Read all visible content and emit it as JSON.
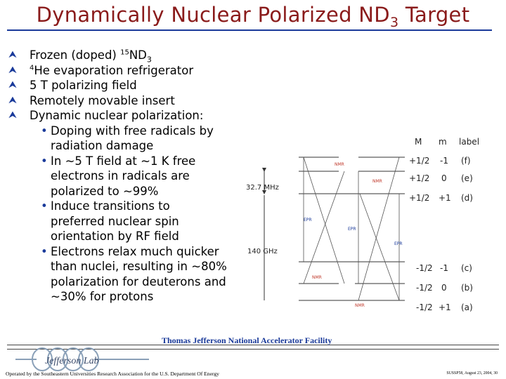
{
  "title": {
    "main": "Dynamically Nuclear Polarized ND",
    "sub": "3",
    "suffix": " Target"
  },
  "bullets": [
    {
      "sup": "15",
      "text": "ND",
      "sub": "3",
      "pre": "Frozen (doped) "
    },
    {
      "sup": "4",
      "text": "He evaporation refrigerator"
    },
    {
      "text": "5 T polarizing field"
    },
    {
      "text": "Remotely movable insert"
    },
    {
      "text": "Dynamic nuclear polarization:"
    }
  ],
  "sub_bullets": [
    [
      "Doping with free radicals by",
      "radiation damage"
    ],
    [
      "In ~5 T field at ~1 K free",
      "electrons in radicals are",
      "polarized to ~99%"
    ],
    [
      "Induce transitions to",
      "preferred nuclear spin",
      "orientation by RF field"
    ],
    [
      "Electrons relax much quicker",
      "than nuclei, resulting in ~80%",
      "polarization for deuterons and",
      "~30% for protons"
    ]
  ],
  "diagram": {
    "header": {
      "M": "M",
      "m": "m",
      "label": "label"
    },
    "upper_levels": [
      {
        "M": "+1/2",
        "m": "-1",
        "label": "(f)"
      },
      {
        "M": "+1/2",
        "m": "0",
        "label": "(e)"
      },
      {
        "M": "+1/2",
        "m": "+1",
        "label": "(d)"
      }
    ],
    "lower_levels": [
      {
        "M": "-1/2",
        "m": "-1",
        "label": "(c)"
      },
      {
        "M": "-1/2",
        "m": "0",
        "label": "(b)"
      },
      {
        "M": "-1/2",
        "m": "+1",
        "label": "(a)"
      }
    ],
    "freq_nmr": "32.7 MHz",
    "freq_epr": "140 GHz",
    "nmr": "NMR",
    "epr": "EPR"
  },
  "footer": {
    "logo_text": "Jefferson Lab",
    "lab_name": "Thomas Jefferson National Accelerator Facility",
    "operated": "Operated by the Southeastern Universities Research Association for the U.S. Department Of Energy",
    "conf": "SUSSP58, August 23, 2004, 30"
  },
  "colors": {
    "title": "#8a1b1b",
    "accent": "#1a3a9a",
    "diagram_red": "#c0392b"
  }
}
